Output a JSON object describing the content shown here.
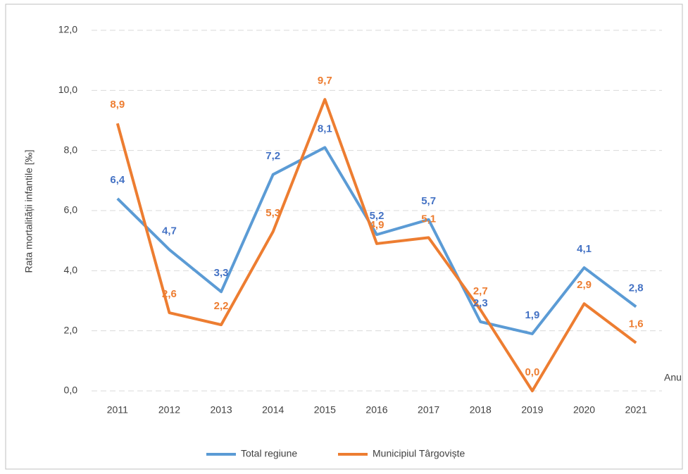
{
  "chart_data": {
    "type": "line",
    "y_label": "Rata mortalității infantile [‰]",
    "x_label": "Anu",
    "categories": [
      "2011",
      "2012",
      "2013",
      "2014",
      "2015",
      "2016",
      "2017",
      "2018",
      "2019",
      "2020",
      "2021"
    ],
    "series": [
      {
        "name": "Total regiune",
        "color": "#5b9bd5",
        "label_color": "#4472c4",
        "values": [
          6.4,
          4.7,
          3.3,
          7.2,
          8.1,
          5.2,
          5.7,
          2.3,
          1.9,
          4.1,
          2.8
        ],
        "value_labels": [
          "6,4",
          "4,7",
          "3,3",
          "7,2",
          "8,1",
          "5,2",
          "5,7",
          "2,3",
          "1,9",
          "4,1",
          "2,8"
        ]
      },
      {
        "name": "Municipiul Târgoviște",
        "color": "#ed7d31",
        "label_color": "#ed7d31",
        "values": [
          8.9,
          2.6,
          2.2,
          5.3,
          9.7,
          4.9,
          5.1,
          2.7,
          0.0,
          2.9,
          1.6
        ],
        "value_labels": [
          "8,9",
          "2,6",
          "2,2",
          "5,3",
          "9,7",
          "4,9",
          "5,1",
          "2,7",
          "0,0",
          "2,9",
          "1,6"
        ]
      }
    ],
    "ylim": [
      0,
      12
    ],
    "yticks": [
      {
        "value": 0,
        "label": "0,0"
      },
      {
        "value": 2,
        "label": "2,0"
      },
      {
        "value": 4,
        "label": "4,0"
      },
      {
        "value": 6,
        "label": "6,0"
      },
      {
        "value": 8,
        "label": "8,0"
      },
      {
        "value": 10,
        "label": "10,0"
      },
      {
        "value": 12,
        "label": "12,0"
      }
    ],
    "grid": true
  }
}
